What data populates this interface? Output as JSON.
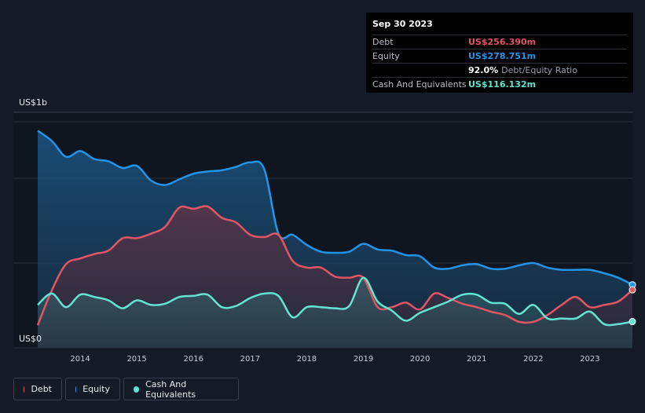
{
  "tooltip": {
    "date": "Sep 30 2023",
    "debt_label": "Debt",
    "debt_value": "US$256.390m",
    "equity_label": "Equity",
    "equity_value": "US$278.751m",
    "ratio_value": "92.0%",
    "ratio_label": "Debt/Equity Ratio",
    "cash_label": "Cash And Equivalents",
    "cash_value": "US$116.132m"
  },
  "legend": {
    "debt": "Debt",
    "equity": "Equity",
    "cash": "Cash And Equivalents"
  },
  "colors": {
    "debt": "#e25563",
    "equity": "#2394e8",
    "cash": "#63e4d2",
    "background": "#151b26"
  },
  "chart_data": {
    "type": "area",
    "y_unit_label_top": "US$1b",
    "y_unit_label_bottom": "US$0",
    "ylim": [
      0,
      1000
    ],
    "xlim": [
      2013.25,
      2023.75
    ],
    "x_ticks": [
      "2014",
      "2015",
      "2016",
      "2017",
      "2018",
      "2019",
      "2020",
      "2021",
      "2022",
      "2023"
    ],
    "series": [
      {
        "name": "Equity",
        "points": [
          [
            2013.25,
            960
          ],
          [
            2013.5,
            915
          ],
          [
            2013.75,
            845
          ],
          [
            2014.0,
            870
          ],
          [
            2014.25,
            835
          ],
          [
            2014.5,
            825
          ],
          [
            2014.75,
            795
          ],
          [
            2015.0,
            805
          ],
          [
            2015.25,
            740
          ],
          [
            2015.5,
            720
          ],
          [
            2015.75,
            745
          ],
          [
            2016.0,
            770
          ],
          [
            2016.25,
            780
          ],
          [
            2016.5,
            785
          ],
          [
            2016.75,
            800
          ],
          [
            2017.0,
            820
          ],
          [
            2017.25,
            790
          ],
          [
            2017.5,
            505
          ],
          [
            2017.75,
            500
          ],
          [
            2018.0,
            455
          ],
          [
            2018.25,
            425
          ],
          [
            2018.5,
            420
          ],
          [
            2018.75,
            425
          ],
          [
            2019.0,
            460
          ],
          [
            2019.25,
            435
          ],
          [
            2019.5,
            430
          ],
          [
            2019.75,
            410
          ],
          [
            2020.0,
            405
          ],
          [
            2020.25,
            355
          ],
          [
            2020.5,
            350
          ],
          [
            2020.75,
            365
          ],
          [
            2021.0,
            370
          ],
          [
            2021.25,
            350
          ],
          [
            2021.5,
            350
          ],
          [
            2021.75,
            365
          ],
          [
            2022.0,
            375
          ],
          [
            2022.25,
            355
          ],
          [
            2022.5,
            345
          ],
          [
            2022.75,
            345
          ],
          [
            2023.0,
            345
          ],
          [
            2023.25,
            330
          ],
          [
            2023.5,
            310
          ],
          [
            2023.75,
            278.751
          ]
        ]
      },
      {
        "name": "Debt",
        "points": [
          [
            2013.25,
            100
          ],
          [
            2013.5,
            255
          ],
          [
            2013.75,
            370
          ],
          [
            2014.0,
            395
          ],
          [
            2014.25,
            415
          ],
          [
            2014.5,
            430
          ],
          [
            2014.75,
            485
          ],
          [
            2015.0,
            485
          ],
          [
            2015.25,
            505
          ],
          [
            2015.5,
            535
          ],
          [
            2015.75,
            620
          ],
          [
            2016.0,
            615
          ],
          [
            2016.25,
            625
          ],
          [
            2016.5,
            575
          ],
          [
            2016.75,
            555
          ],
          [
            2017.0,
            500
          ],
          [
            2017.25,
            490
          ],
          [
            2017.5,
            500
          ],
          [
            2017.75,
            385
          ],
          [
            2018.0,
            355
          ],
          [
            2018.25,
            355
          ],
          [
            2018.5,
            315
          ],
          [
            2018.75,
            310
          ],
          [
            2019.0,
            310
          ],
          [
            2019.25,
            180
          ],
          [
            2019.5,
            180
          ],
          [
            2019.75,
            200
          ],
          [
            2020.0,
            170
          ],
          [
            2020.25,
            240
          ],
          [
            2020.5,
            220
          ],
          [
            2020.75,
            195
          ],
          [
            2021.0,
            180
          ],
          [
            2021.25,
            160
          ],
          [
            2021.5,
            145
          ],
          [
            2021.75,
            115
          ],
          [
            2022.0,
            115
          ],
          [
            2022.25,
            145
          ],
          [
            2022.5,
            190
          ],
          [
            2022.75,
            225
          ],
          [
            2023.0,
            180
          ],
          [
            2023.25,
            190
          ],
          [
            2023.5,
            205
          ],
          [
            2023.75,
            256.39
          ]
        ]
      },
      {
        "name": "Cash And Equivalents",
        "points": [
          [
            2013.25,
            190
          ],
          [
            2013.5,
            240
          ],
          [
            2013.75,
            180
          ],
          [
            2014.0,
            235
          ],
          [
            2014.25,
            225
          ],
          [
            2014.5,
            210
          ],
          [
            2014.75,
            175
          ],
          [
            2015.0,
            210
          ],
          [
            2015.25,
            190
          ],
          [
            2015.5,
            195
          ],
          [
            2015.75,
            225
          ],
          [
            2016.0,
            230
          ],
          [
            2016.25,
            235
          ],
          [
            2016.5,
            180
          ],
          [
            2016.75,
            185
          ],
          [
            2017.0,
            220
          ],
          [
            2017.25,
            240
          ],
          [
            2017.5,
            230
          ],
          [
            2017.75,
            135
          ],
          [
            2018.0,
            180
          ],
          [
            2018.25,
            180
          ],
          [
            2018.5,
            175
          ],
          [
            2018.75,
            185
          ],
          [
            2019.0,
            310
          ],
          [
            2019.25,
            205
          ],
          [
            2019.5,
            165
          ],
          [
            2019.75,
            120
          ],
          [
            2020.0,
            155
          ],
          [
            2020.25,
            180
          ],
          [
            2020.5,
            205
          ],
          [
            2020.75,
            235
          ],
          [
            2021.0,
            235
          ],
          [
            2021.25,
            200
          ],
          [
            2021.5,
            195
          ],
          [
            2021.75,
            150
          ],
          [
            2022.0,
            190
          ],
          [
            2022.25,
            130
          ],
          [
            2022.5,
            130
          ],
          [
            2022.75,
            130
          ],
          [
            2023.0,
            160
          ],
          [
            2023.25,
            105
          ],
          [
            2023.5,
            105
          ],
          [
            2023.75,
            116.132
          ]
        ]
      }
    ]
  }
}
